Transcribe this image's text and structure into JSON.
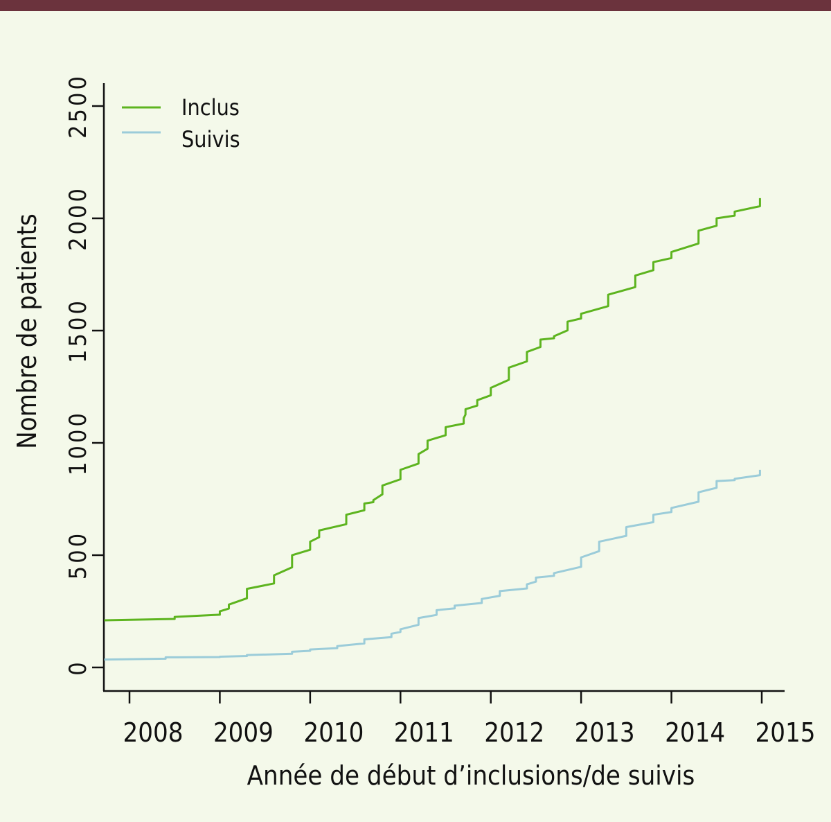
{
  "chart_data": {
    "type": "line",
    "title": "",
    "xlabel": "Année de début d’inclusions/de suivis",
    "ylabel": "Nombre de patients",
    "xlim": [
      2007.72,
      2015.25
    ],
    "ylim": [
      -100,
      2600
    ],
    "xticks": [
      2008,
      2009,
      2010,
      2011,
      2012,
      2013,
      2014,
      2015
    ],
    "xtick_labels": [
      "2008",
      "2009",
      "2010",
      "2011",
      "2012",
      "2013",
      "2014",
      "2015"
    ],
    "yticks": [
      0,
      500,
      1000,
      1500,
      2000,
      2500
    ],
    "ytick_labels": [
      "0",
      "500",
      "1000",
      "1500",
      "2000",
      "2500"
    ],
    "grid": false,
    "legend_position": "top-left",
    "series": [
      {
        "name": "Inclus",
        "color": "#5db41f",
        "x": [
          2007.72,
          2008.5,
          2009.0,
          2009.1,
          2009.3,
          2009.6,
          2009.8,
          2010.0,
          2010.1,
          2010.4,
          2010.6,
          2010.7,
          2010.8,
          2011.0,
          2011.2,
          2011.3,
          2011.5,
          2011.7,
          2011.72,
          2011.85,
          2012.0,
          2012.2,
          2012.4,
          2012.55,
          2012.7,
          2012.85,
          2013.0,
          2013.3,
          2013.6,
          2013.8,
          2014.0,
          2014.3,
          2014.5,
          2014.7,
          2014.98
        ],
        "y": [
          210,
          225,
          250,
          280,
          350,
          410,
          500,
          560,
          610,
          680,
          730,
          745,
          810,
          880,
          950,
          1010,
          1070,
          1110,
          1150,
          1190,
          1245,
          1335,
          1405,
          1460,
          1475,
          1540,
          1575,
          1660,
          1745,
          1805,
          1850,
          1945,
          2000,
          2030,
          2090
        ]
      },
      {
        "name": "Suivis",
        "color": "#9bccd9",
        "x": [
          2007.72,
          2008.4,
          2009.0,
          2009.3,
          2009.8,
          2010.0,
          2010.3,
          2010.6,
          2010.9,
          2011.0,
          2011.2,
          2011.4,
          2011.6,
          2011.9,
          2012.1,
          2012.4,
          2012.5,
          2012.7,
          2013.0,
          2013.2,
          2013.5,
          2013.8,
          2014.0,
          2014.3,
          2014.5,
          2014.7,
          2014.98
        ],
        "y": [
          35,
          45,
          48,
          55,
          70,
          80,
          95,
          125,
          150,
          170,
          220,
          255,
          275,
          305,
          340,
          370,
          400,
          420,
          490,
          560,
          625,
          680,
          710,
          780,
          830,
          840,
          880
        ]
      }
    ]
  }
}
